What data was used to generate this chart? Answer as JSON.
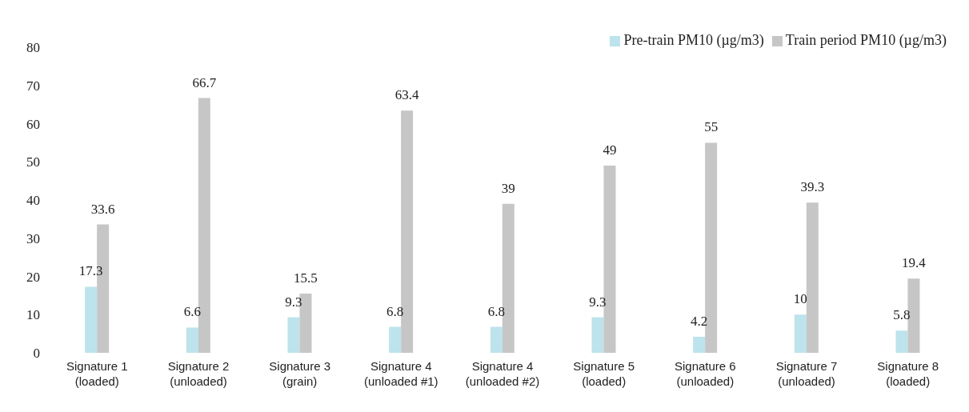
{
  "chart_data": {
    "type": "bar",
    "categories": [
      "Signature 1\n(loaded)",
      "Signature 2\n(unloaded)",
      "Signature 3\n(grain)",
      "Signature 4\n(unloaded #1)",
      "Signature 4\n(unloaded #2)",
      "Signature 5\n(loaded)",
      "Signature 6\n(unloaded)",
      "Signature 7\n(unloaded)",
      "Signature 8\n(loaded)"
    ],
    "series": [
      {
        "name": "Pre-train PM10 (µg/m3)",
        "color": "#bde3ec",
        "values": [
          17.3,
          6.6,
          9.3,
          6.8,
          6.8,
          9.3,
          4.2,
          10,
          5.8
        ]
      },
      {
        "name": "Train period PM10 (µg/m3)",
        "color": "#c6c6c6",
        "values": [
          33.6,
          66.7,
          15.5,
          63.4,
          39,
          49,
          55,
          39.3,
          19.4
        ]
      }
    ],
    "ylim": [
      0,
      80
    ],
    "yticks": [
      0,
      10,
      20,
      30,
      40,
      50,
      60,
      70,
      80
    ],
    "data_labels": true,
    "legend": "top right"
  }
}
